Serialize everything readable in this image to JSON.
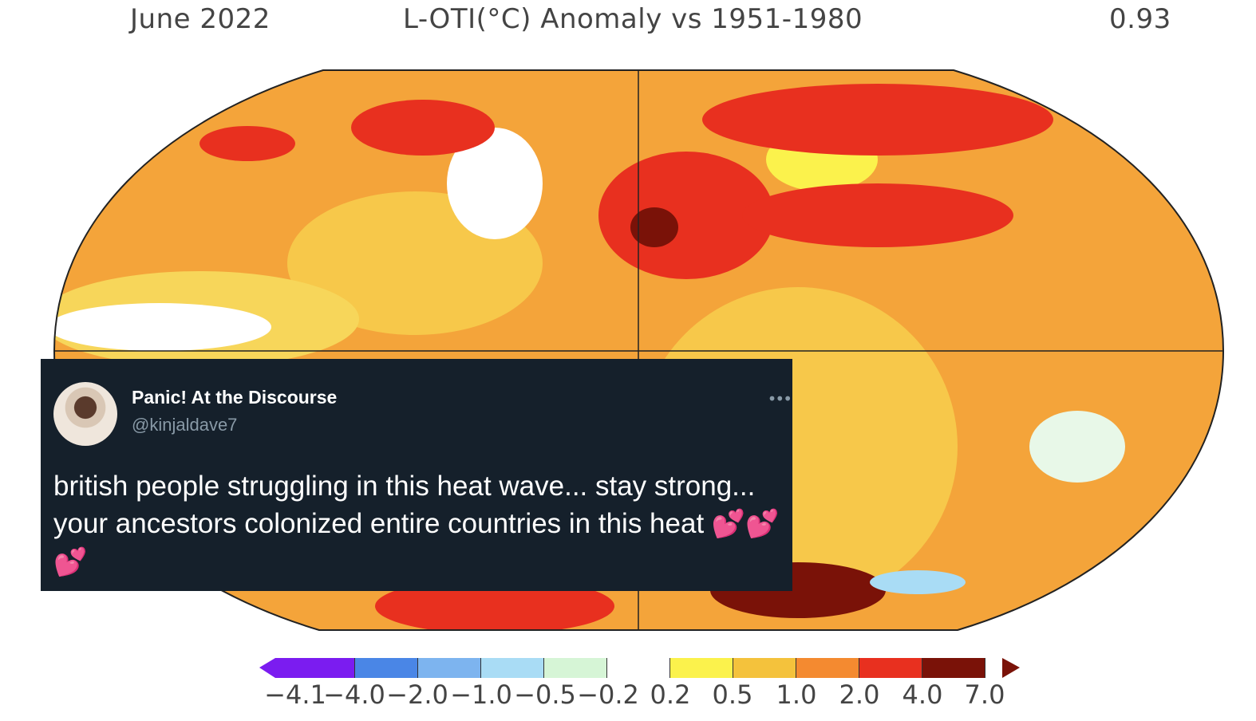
{
  "map": {
    "month_label": "June 2022",
    "title": "L-OTI(°C) Anomaly vs 1951-1980",
    "global_mean": "0.93",
    "colorbar": {
      "colors": [
        "#7b1cf0",
        "#4a86e6",
        "#7db4ef",
        "#a9dcf5",
        "#d6f5d6",
        "#ffffff",
        "#fbf24c",
        "#f4c23c",
        "#f48a30",
        "#e8301f",
        "#7a1208"
      ],
      "ticks": [
        "−4.1",
        "−4.0",
        "−2.0",
        "−1.0",
        "−0.5",
        "−0.2",
        "0.2",
        "0.5",
        "1.0",
        "2.0",
        "4.0",
        "7.0"
      ]
    }
  },
  "tweet": {
    "display_name": "Panic! At the Discourse",
    "handle": "@kinjaldave7",
    "more_icon": "ellipsis-icon",
    "text": "british people struggling in this heat wave... stay strong... your ancestors colonized entire countries in this heat",
    "emoji": "💕💕💕"
  }
}
